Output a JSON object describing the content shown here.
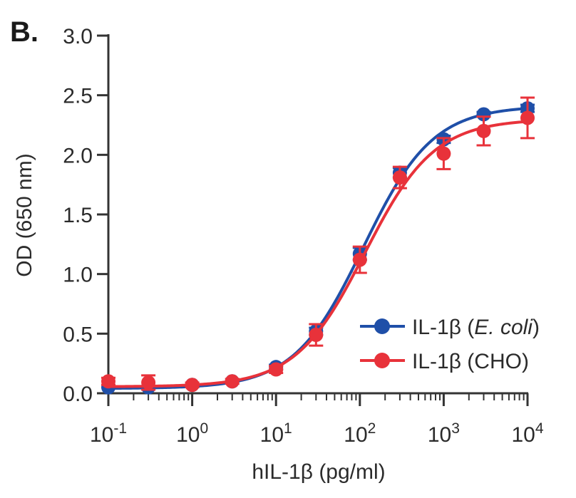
{
  "panel_label": "B.",
  "chart_data": {
    "type": "line",
    "x_scale": "log",
    "title": "",
    "xlabel": "hIL-1β (pg/ml)",
    "ylabel": "OD (650 nm)",
    "xlim": [
      0.1,
      10000
    ],
    "ylim": [
      0.0,
      3.0
    ],
    "y_ticks": [
      "0.0",
      "0.5",
      "1.0",
      "1.5",
      "2.0",
      "2.5",
      "3.0"
    ],
    "x_ticks": [
      {
        "base": "10",
        "exp": "-1",
        "value": 0.1
      },
      {
        "base": "10",
        "exp": "0",
        "value": 1
      },
      {
        "base": "10",
        "exp": "1",
        "value": 10
      },
      {
        "base": "10",
        "exp": "2",
        "value": 100
      },
      {
        "base": "10",
        "exp": "3",
        "value": 1000
      },
      {
        "base": "10",
        "exp": "4",
        "value": 10000
      }
    ],
    "legend_position": "bottom-right",
    "series": [
      {
        "name": "IL-1β (E. coli)",
        "legend_main": "IL-1β (",
        "legend_italic": "E. coli",
        "legend_close": ")",
        "color": "#1f4fa8",
        "x": [
          0.1,
          0.3,
          1,
          3,
          10,
          30,
          100,
          300,
          1000,
          3000,
          10000
        ],
        "y": [
          0.05,
          0.05,
          0.07,
          0.1,
          0.22,
          0.52,
          1.17,
          1.85,
          2.13,
          2.34,
          2.39
        ],
        "err": [
          0.01,
          0.01,
          0.01,
          0.01,
          0.02,
          0.03,
          0.05,
          0.04,
          0.03,
          0.02,
          0.03
        ],
        "fit": {
          "bottom": 0.04,
          "top": 2.41,
          "ec50": 110,
          "hill": 1.05
        }
      },
      {
        "name": "IL-1β (CHO)",
        "legend_main": "IL-1β (CHO)",
        "color": "#e8323a",
        "x": [
          0.1,
          0.3,
          1,
          3,
          10,
          30,
          100,
          300,
          1000,
          3000,
          10000
        ],
        "y": [
          0.1,
          0.09,
          0.07,
          0.1,
          0.2,
          0.49,
          1.12,
          1.81,
          2.01,
          2.2,
          2.31
        ],
        "err": [
          0.03,
          0.06,
          0.02,
          0.02,
          0.03,
          0.09,
          0.11,
          0.09,
          0.13,
          0.12,
          0.17
        ],
        "fit": {
          "bottom": 0.055,
          "top": 2.3,
          "ec50": 115,
          "hill": 1.05
        }
      }
    ]
  }
}
